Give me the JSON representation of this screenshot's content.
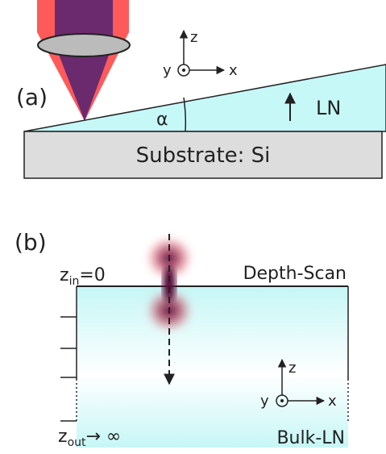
{
  "panel_a": {
    "label": "(a)",
    "axes": {
      "z": "z",
      "y": "y",
      "x": "x"
    },
    "angle": "α",
    "layer": "LN",
    "substrate": "Substrate: Si"
  },
  "panel_b": {
    "label": "(b)",
    "surface": {
      "symbol": "z",
      "subscript": "in",
      "value": "=0"
    },
    "scan": "Depth-Scan",
    "axes": {
      "z": "z",
      "y": "y",
      "x": "x"
    },
    "bottom": {
      "symbol": "z",
      "subscript": "out",
      "value": "→ ∞"
    },
    "bulk": "Bulk-LN"
  }
}
